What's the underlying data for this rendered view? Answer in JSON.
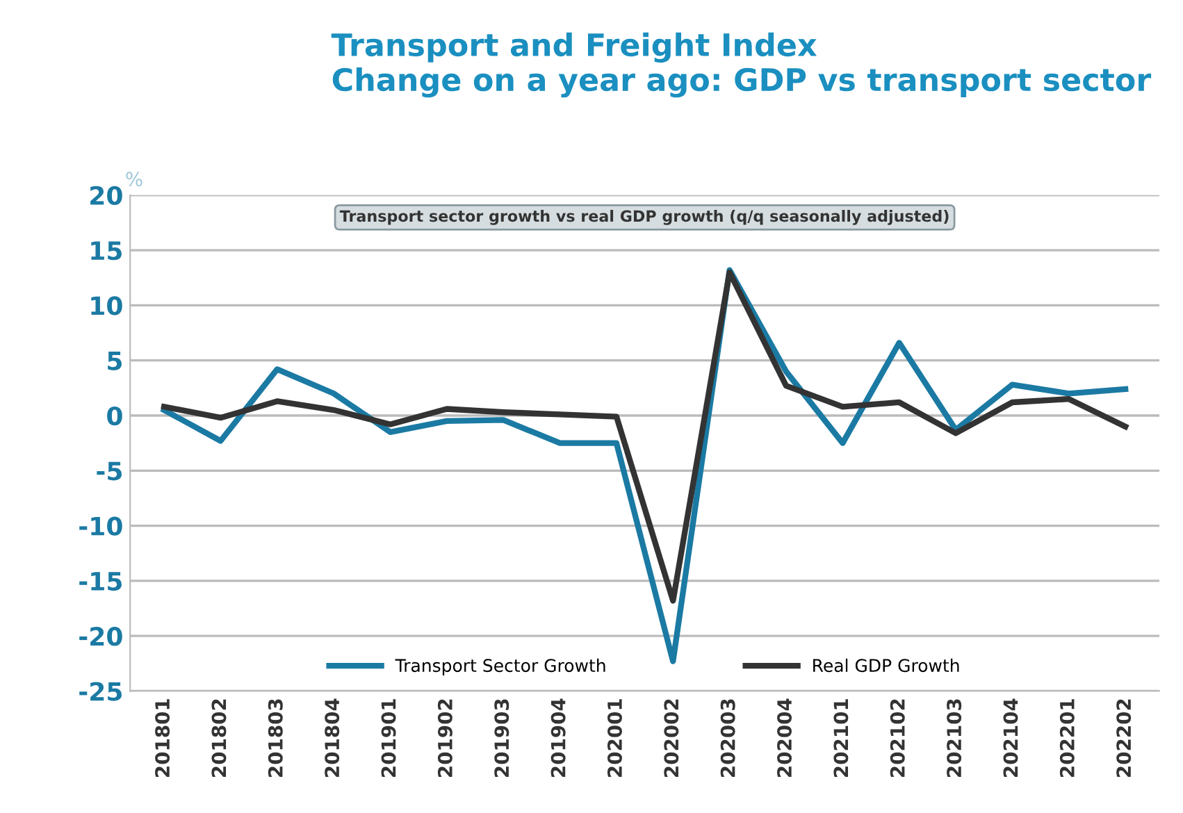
{
  "chart_data": {
    "type": "line",
    "title": "Transport and Freight Index\nChange on a year ago: GDP vs transport sector",
    "ylabel": "%",
    "annotations": [
      "Transport sector growth vs real GDP growth (q/q seasonally adjusted)"
    ],
    "categories": [
      "201801",
      "201802",
      "201803",
      "201804",
      "201901",
      "201902",
      "201903",
      "201904",
      "202001",
      "202002",
      "202003",
      "202004",
      "202101",
      "202102",
      "202103",
      "202104",
      "202201",
      "202202"
    ],
    "series": [
      {
        "name": "Transport Sector Growth",
        "color": "#1b7aa3",
        "values": [
          0.5,
          -2.3,
          4.2,
          2.0,
          -1.5,
          -0.5,
          -0.4,
          -2.5,
          -2.5,
          -22.3,
          13.2,
          4.0,
          -2.5,
          6.6,
          -1.3,
          2.8,
          2.0,
          2.4
        ]
      },
      {
        "name": "Real GDP Growth",
        "color": "#333333",
        "values": [
          0.8,
          -0.2,
          1.3,
          0.5,
          -0.8,
          0.6,
          0.3,
          0.1,
          -0.1,
          -16.8,
          13.0,
          2.7,
          0.8,
          1.2,
          -1.6,
          1.2,
          1.5,
          -1.0
        ]
      }
    ],
    "ylim": [
      -25,
      20
    ],
    "yticks": [
      -25,
      -20,
      -15,
      -10,
      -5,
      0,
      5,
      10,
      15,
      20
    ],
    "grid": "y",
    "legend": "bottom",
    "marker": "none",
    "line_style": "solid"
  }
}
